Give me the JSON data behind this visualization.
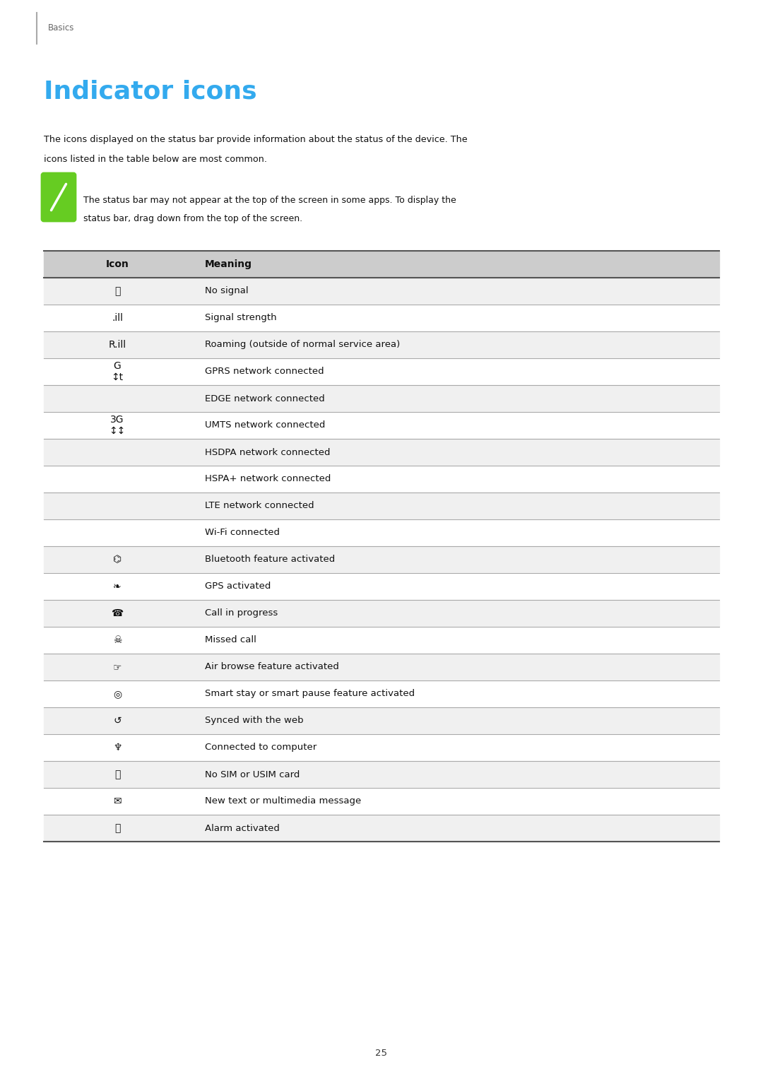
{
  "page_bg": "#ffffff",
  "header_text": "Basics",
  "header_color": "#666666",
  "title": "Indicator icons",
  "title_color": "#33AAEE",
  "body_line1": "The icons displayed on the status bar provide information about the status of the device. The",
  "body_line2": "icons listed in the table below are most common.",
  "note_line1": "The status bar may not appear at the top of the screen in some apps. To display the",
  "note_line2": "status bar, drag down from the top of the screen.",
  "note_icon_color": "#66CC22",
  "col1_header": "Icon",
  "col2_header": "Meaning",
  "header_bg": "#CCCCCC",
  "row_bg_odd": "#F0F0F0",
  "row_bg_even": "#FFFFFF",
  "table_border_color": "#555555",
  "row_border_color": "#AAAAAA",
  "rows": [
    {
      "icon": "⦸",
      "meaning": "No signal"
    },
    {
      "icon": ".ill",
      "meaning": "Signal strength"
    },
    {
      "icon": "R.ill",
      "meaning": "Roaming (outside of normal service area)"
    },
    {
      "icon": "G\n↕t",
      "meaning": "GPRS network connected"
    },
    {
      "icon": "",
      "meaning": "EDGE network connected"
    },
    {
      "icon": "3G\n↕↕",
      "meaning": "UMTS network connected"
    },
    {
      "icon": "",
      "meaning": "HSDPA network connected"
    },
    {
      "icon": "",
      "meaning": "HSPA+ network connected"
    },
    {
      "icon": "",
      "meaning": "LTE network connected"
    },
    {
      "icon": "",
      "meaning": "Wi-Fi connected"
    },
    {
      "icon": "⌬",
      "meaning": "Bluetooth feature activated"
    },
    {
      "icon": "❧",
      "meaning": "GPS activated"
    },
    {
      "icon": "☎",
      "meaning": "Call in progress"
    },
    {
      "icon": "☠",
      "meaning": "Missed call"
    },
    {
      "icon": "☞",
      "meaning": "Air browse feature activated"
    },
    {
      "icon": "◎",
      "meaning": "Smart stay or smart pause feature activated"
    },
    {
      "icon": "↺",
      "meaning": "Synced with the web"
    },
    {
      "icon": "♆",
      "meaning": "Connected to computer"
    },
    {
      "icon": "⌖",
      "meaning": "No SIM or USIM card"
    },
    {
      "icon": "✉",
      "meaning": "New text or multimedia message"
    },
    {
      "icon": "⏰",
      "meaning": "Alarm activated"
    }
  ],
  "page_number": "25"
}
